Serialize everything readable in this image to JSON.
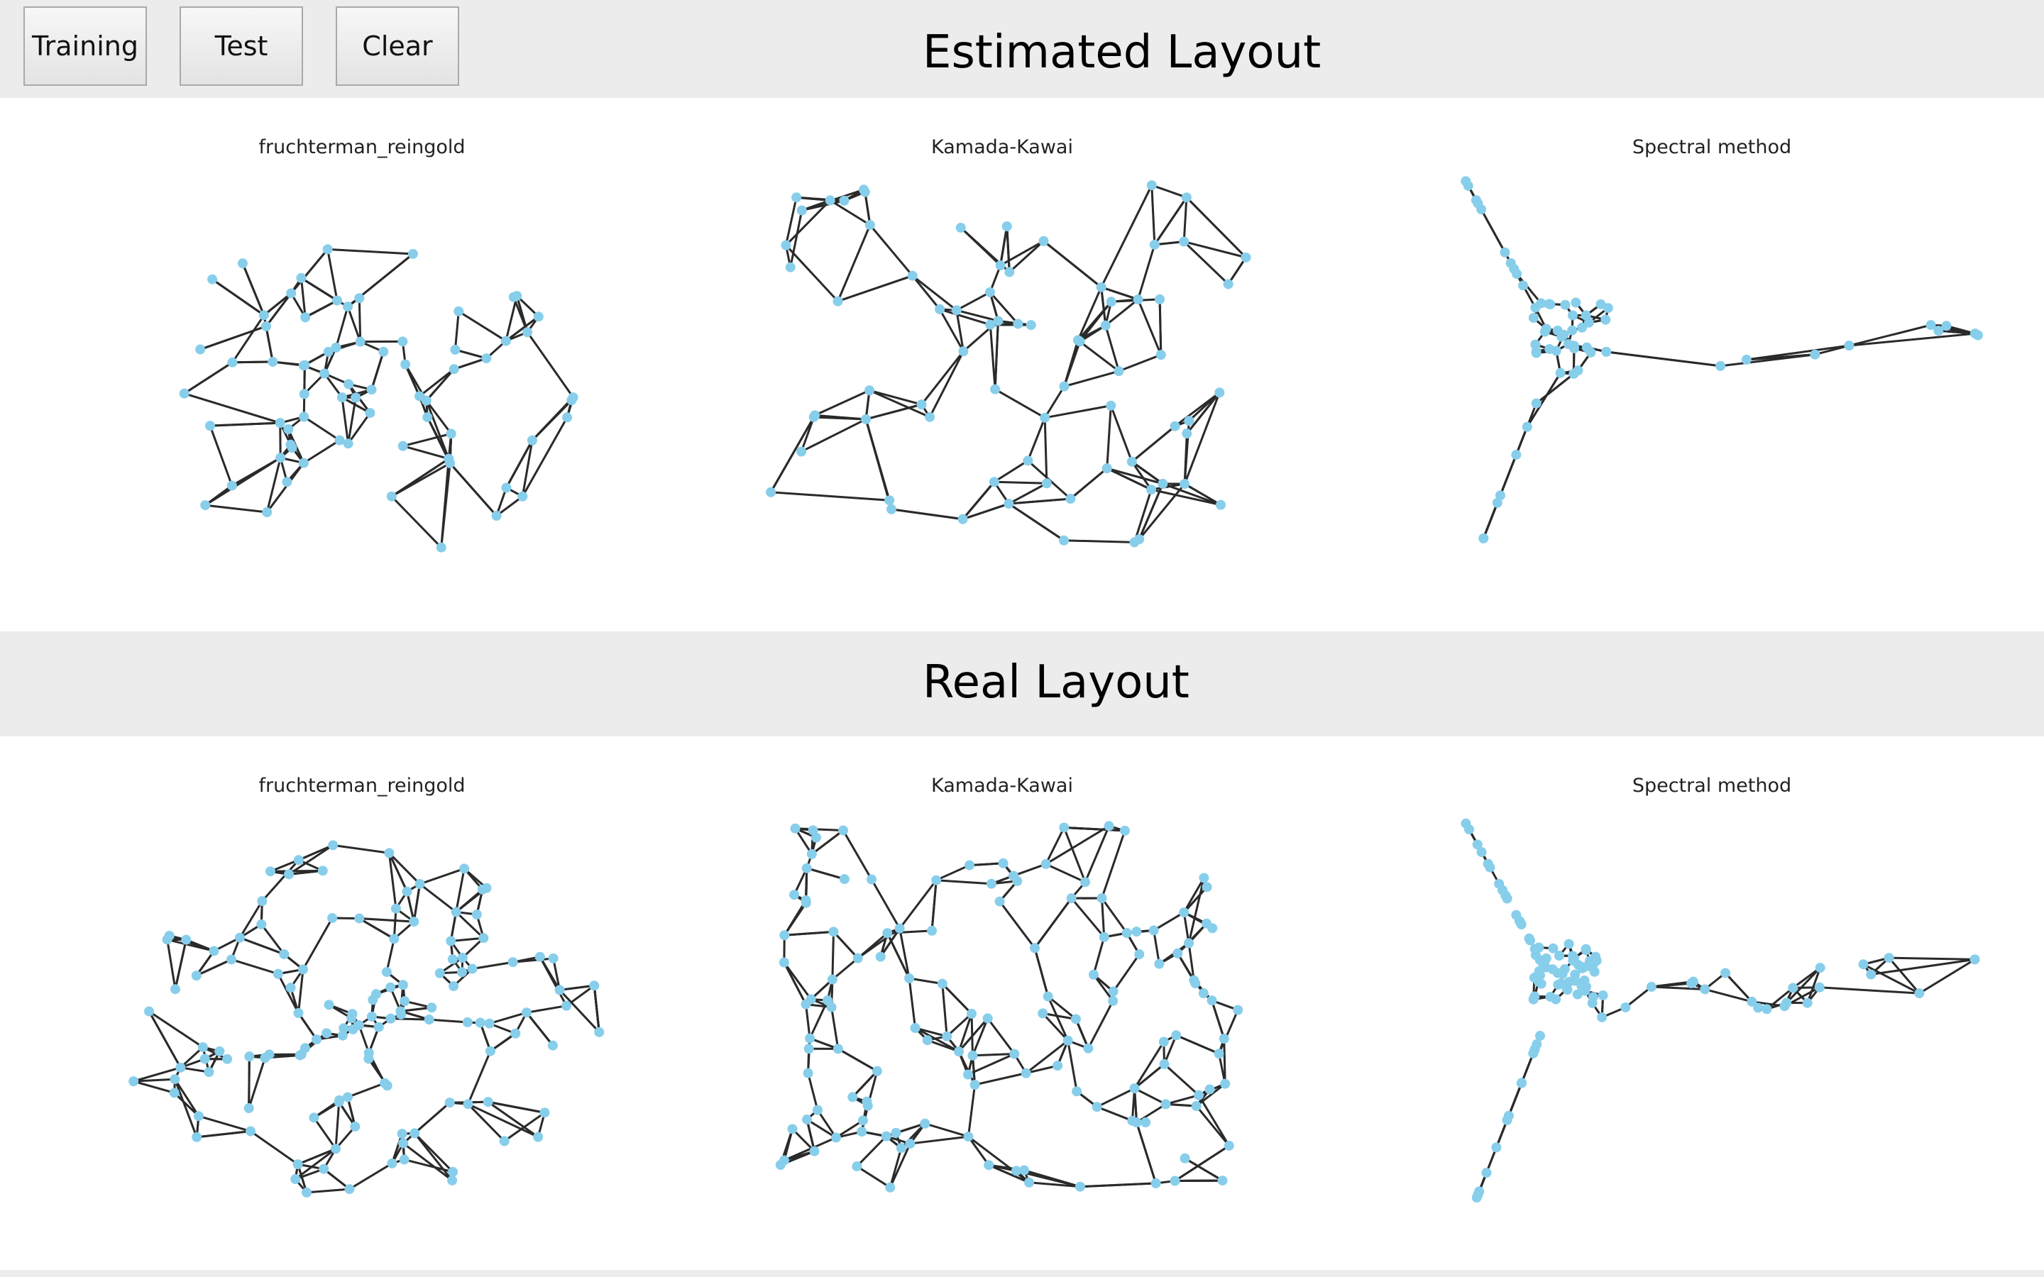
{
  "toolbar": {
    "buttons": [
      "Training",
      "Test",
      "Clear"
    ]
  },
  "estimated_section": {
    "title": "Estimated Layout"
  },
  "real_section": {
    "title": "Real Layout"
  },
  "plots": {
    "estimated": [
      {
        "title": "fruchterman_reingold"
      },
      {
        "title": "Kamada-Kawai"
      },
      {
        "title": "Spectral method"
      }
    ],
    "real": [
      {
        "title": "fruchterman_reingold"
      },
      {
        "title": "Kamada-Kawai"
      },
      {
        "title": "Spectral method"
      }
    ]
  },
  "colors": {
    "node": "#87ceeb",
    "edge": "#2a2a2a",
    "background": "#ececec",
    "panel": "#ffffff"
  }
}
